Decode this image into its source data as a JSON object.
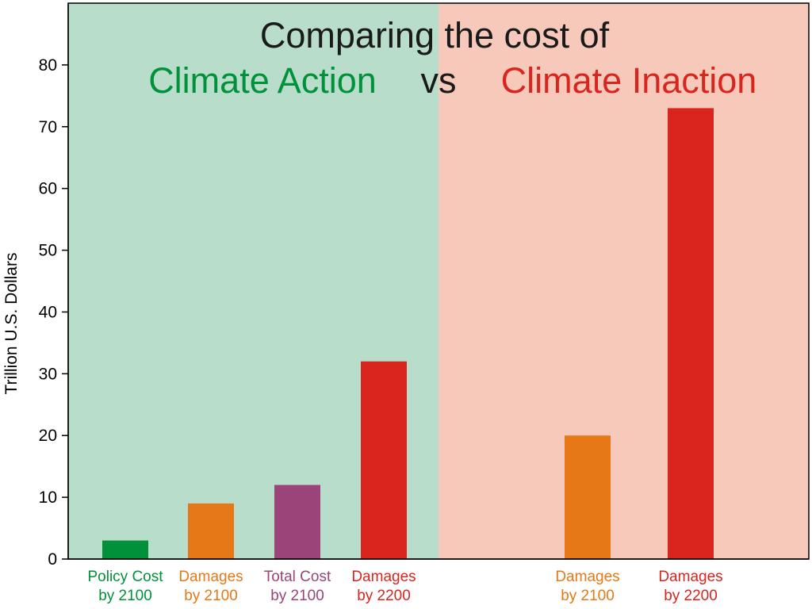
{
  "chart_data": {
    "type": "bar",
    "title": {
      "line1": "Comparing the cost of",
      "action": "Climate Action",
      "vs": "vs",
      "inaction": "Climate Inaction"
    },
    "ylabel": "Trillion U.S. Dollars",
    "xlabel": "",
    "ylim": [
      0,
      90
    ],
    "yticks": [
      0,
      10,
      20,
      30,
      40,
      50,
      60,
      70,
      80
    ],
    "grid": false,
    "panels": [
      {
        "name": "Climate Action",
        "background": "#b8decb"
      },
      {
        "name": "Climate Inaction",
        "background": "#f7c9bb"
      }
    ],
    "bars": [
      {
        "group": "Climate Action",
        "label_line1": "Policy Cost",
        "label_line2": "by 2100",
        "value": 3,
        "color": "#00913a"
      },
      {
        "group": "Climate Action",
        "label_line1": "Damages",
        "label_line2": "by 2100",
        "value": 9,
        "color": "#e67817"
      },
      {
        "group": "Climate Action",
        "label_line1": "Total Cost",
        "label_line2": "by 2100",
        "value": 12,
        "color": "#9a4479"
      },
      {
        "group": "Climate Action",
        "label_line1": "Damages",
        "label_line2": "by 2200",
        "value": 32,
        "color": "#d9251d"
      },
      {
        "group": "Climate Inaction",
        "label_line1": "Damages",
        "label_line2": "by 2100",
        "value": 20,
        "color": "#e67817"
      },
      {
        "group": "Climate Inaction",
        "label_line1": "Damages",
        "label_line2": "by 2200",
        "value": 73,
        "color": "#d9251d"
      }
    ],
    "colors": {
      "title": "#1a1a1a",
      "action": "#00913a",
      "inaction": "#d9251d"
    }
  }
}
